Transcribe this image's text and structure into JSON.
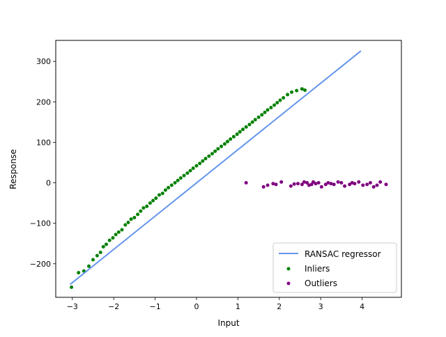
{
  "chart_data": {
    "type": "scatter",
    "title": "",
    "xlabel": "Input",
    "ylabel": "Response",
    "xlim": [
      -3.4,
      4.95
    ],
    "ylim": [
      -283,
      352
    ],
    "xticks": [
      -3,
      -2,
      -1,
      0,
      1,
      2,
      3,
      4
    ],
    "yticks": [
      -200,
      -100,
      0,
      100,
      200,
      300
    ],
    "xtick_labels": [
      "−3",
      "−2",
      "−1",
      "0",
      "1",
      "2",
      "3",
      "4"
    ],
    "ytick_labels": [
      "−200",
      "−100",
      "0",
      "100",
      "200",
      "300"
    ],
    "grid": false,
    "legend_position": "bottom-right",
    "line": {
      "name": "RANSAC regressor",
      "color": "#6495ed",
      "x": [
        -3.04,
        3.96
      ],
      "y": [
        -250,
        325
      ]
    },
    "series": [
      {
        "name": "Inliers",
        "color": "#008000",
        "x": [
          -3.02,
          -2.85,
          -2.72,
          -2.6,
          -2.5,
          -2.4,
          -2.32,
          -2.25,
          -2.18,
          -2.1,
          -2.02,
          -1.95,
          -1.88,
          -1.8,
          -1.72,
          -1.65,
          -1.58,
          -1.5,
          -1.42,
          -1.35,
          -1.28,
          -1.2,
          -1.12,
          -1.05,
          -0.98,
          -0.9,
          -0.82,
          -0.75,
          -0.68,
          -0.6,
          -0.52,
          -0.45,
          -0.38,
          -0.3,
          -0.22,
          -0.15,
          -0.08,
          0.0,
          0.08,
          0.15,
          0.22,
          0.3,
          0.38,
          0.45,
          0.52,
          0.6,
          0.68,
          0.75,
          0.82,
          0.9,
          0.98,
          1.05,
          1.12,
          1.2,
          1.28,
          1.35,
          1.42,
          1.5,
          1.58,
          1.65,
          1.72,
          1.8,
          1.88,
          1.95,
          2.02,
          2.1,
          2.2,
          2.3,
          2.42,
          2.55,
          2.62
        ],
        "y": [
          -258,
          -222,
          -218,
          -206,
          -190,
          -180,
          -172,
          -158,
          -152,
          -142,
          -136,
          -128,
          -122,
          -116,
          -104,
          -98,
          -90,
          -86,
          -78,
          -70,
          -62,
          -58,
          -50,
          -44,
          -38,
          -30,
          -26,
          -18,
          -12,
          -6,
          0,
          6,
          12,
          18,
          24,
          30,
          36,
          42,
          48,
          54,
          60,
          66,
          72,
          78,
          84,
          90,
          96,
          102,
          108,
          114,
          120,
          126,
          132,
          138,
          144,
          150,
          156,
          162,
          168,
          174,
          180,
          186,
          192,
          198,
          204,
          210,
          218,
          224,
          228,
          232,
          229
        ]
      },
      {
        "name": "Outliers",
        "color": "#800080",
        "x": [
          1.2,
          1.62,
          1.72,
          1.85,
          1.92,
          2.05,
          2.28,
          2.36,
          2.45,
          2.55,
          2.6,
          2.67,
          2.72,
          2.78,
          2.82,
          2.88,
          2.95,
          3.02,
          3.12,
          3.18,
          3.25,
          3.32,
          3.42,
          3.5,
          3.58,
          3.7,
          3.76,
          3.82,
          3.92,
          4.02,
          4.12,
          4.2,
          4.28,
          4.36,
          4.44,
          4.58
        ],
        "y": [
          0,
          -10,
          -6,
          -2,
          -4,
          2,
          -8,
          -3,
          -2,
          -4,
          2,
          0,
          -6,
          -4,
          2,
          -2,
          0,
          -10,
          -4,
          0,
          -2,
          -4,
          2,
          0,
          -8,
          -4,
          0,
          -2,
          2,
          -6,
          -4,
          0,
          -10,
          -6,
          2,
          -4
        ]
      }
    ]
  }
}
